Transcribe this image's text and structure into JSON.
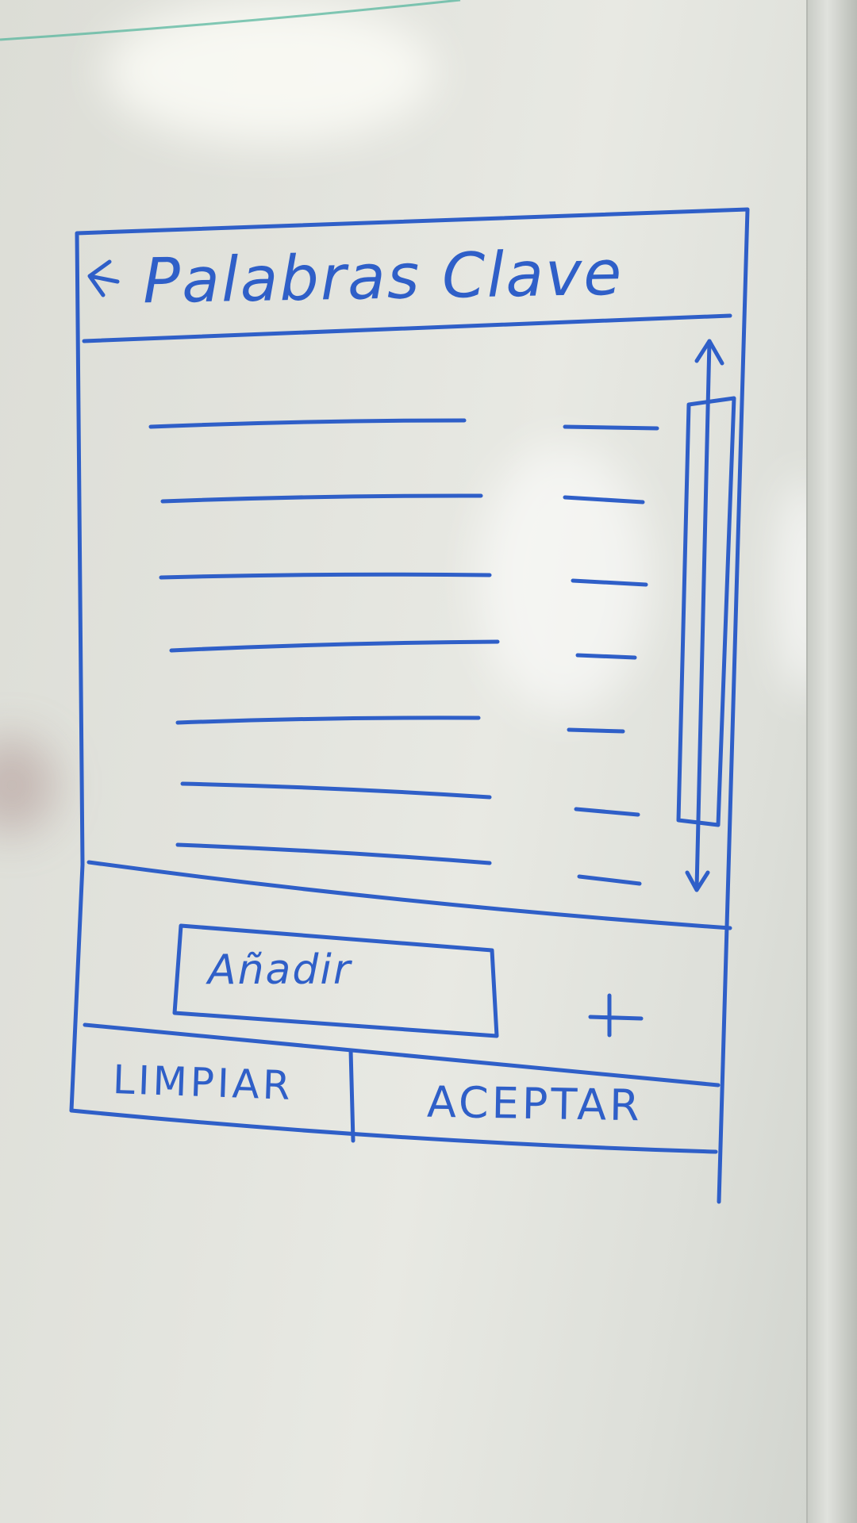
{
  "header": {
    "title": "Palabras Clave"
  },
  "keyword_list": {
    "row_count": 7
  },
  "add_field": {
    "placeholder": "Añadir"
  },
  "footer": {
    "clear_label": "LIMPIAR",
    "accept_label": "ACEPTAR"
  },
  "icons": {
    "back": "back-arrow-icon",
    "add": "plus-icon",
    "scroll": "scrollbar"
  },
  "colors": {
    "ink": "#2f5fc8",
    "board": "#e3e4de"
  }
}
